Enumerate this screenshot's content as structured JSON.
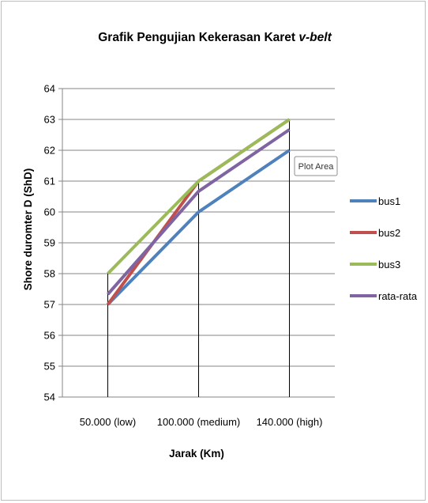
{
  "chart_data": {
    "type": "line",
    "title": "Grafik Pengujian Kekerasan Karet ",
    "title_italic": "v-belt",
    "xlabel": "Jarak (Km)",
    "ylabel": "Shore duromter D (ShD)",
    "categories": [
      "50.000 (low)",
      "100.000 (medium)",
      "140.000 (high)"
    ],
    "ylim": [
      54,
      64
    ],
    "yticks": [
      54,
      55,
      56,
      57,
      58,
      59,
      60,
      61,
      62,
      63,
      64
    ],
    "grid": true,
    "legend_position": "right",
    "series": [
      {
        "name": "bus1",
        "color": "#4f81bd",
        "values": [
          57,
          60,
          62
        ]
      },
      {
        "name": "bus2",
        "color": "#c0504d",
        "values": [
          57,
          61,
          63
        ]
      },
      {
        "name": "bus3",
        "color": "#9bbb59",
        "values": [
          58,
          61,
          63
        ]
      },
      {
        "name": "rata-rata",
        "color": "#8064a2",
        "values": [
          57.33,
          60.67,
          62.67
        ]
      }
    ]
  },
  "tooltip": {
    "label": "Plot Area"
  }
}
